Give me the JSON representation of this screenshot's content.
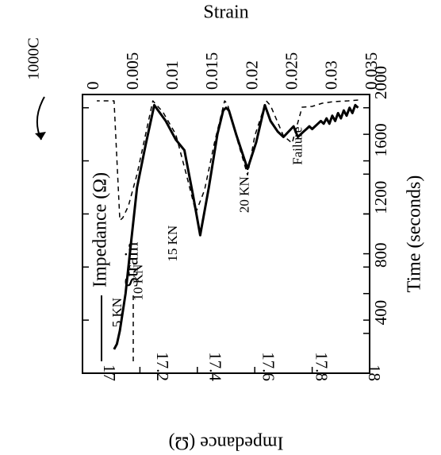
{
  "chart_data": {
    "type": "line",
    "title": "",
    "xlabel": "Time (seconds)",
    "ylabel": "Impedance (Ω)",
    "secondary_label": "Strain",
    "xlim": [
      0,
      2000
    ],
    "ylim": [
      16.95,
      18
    ],
    "secondary_lim": [
      0,
      0.035
    ],
    "x_ticks": [
      "400",
      "800",
      "1200",
      "1600",
      "2000"
    ],
    "y_ticks": [
      "17",
      "17.2",
      "17.4",
      "17.6",
      "17.8",
      "18"
    ],
    "secondary_ticks": [
      "0",
      "0.005",
      "0.01",
      "0.015",
      "0.02",
      "0.025",
      "0.03",
      "0.035"
    ],
    "series": [
      {
        "name": "Impedance (Ω)",
        "style": "solid",
        "color": "#000000",
        "axis": "primary",
        "points": [
          [
            80,
            17.0
          ],
          [
            100,
            16.99
          ],
          [
            120,
            17.02
          ],
          [
            140,
            17.0
          ],
          [
            160,
            17.03
          ],
          [
            180,
            17.01
          ],
          [
            200,
            17.04
          ],
          [
            220,
            17.02
          ],
          [
            240,
            17.05
          ],
          [
            260,
            17.03
          ],
          [
            280,
            17.06
          ],
          [
            300,
            17.04
          ],
          [
            320,
            17.06
          ],
          [
            340,
            17.05
          ],
          [
            360,
            17.06
          ],
          [
            380,
            17.07
          ],
          [
            400,
            17.08
          ],
          [
            420,
            17.07
          ],
          [
            440,
            17.08
          ],
          [
            460,
            17.09
          ],
          [
            480,
            17.1
          ],
          [
            500,
            17.11
          ],
          [
            530,
            17.07
          ],
          [
            600,
            17.11
          ],
          [
            640,
            17.09
          ],
          [
            690,
            17.05
          ],
          [
            730,
            16.99
          ],
          [
            790,
            17.13
          ],
          [
            850,
            17.23
          ],
          [
            930,
            17.1
          ],
          [
            980,
            17.01
          ],
          [
            1000,
            17.0
          ],
          [
            1020,
            17.01
          ],
          [
            1060,
            17.1
          ],
          [
            1120,
            17.3
          ],
          [
            1180,
            17.48
          ],
          [
            1230,
            17.33
          ],
          [
            1290,
            17.16
          ],
          [
            1350,
            17.12
          ],
          [
            1420,
            17.05
          ],
          [
            1500,
            16.99
          ],
          [
            1560,
            17.14
          ],
          [
            1620,
            17.3
          ],
          [
            1660,
            17.5
          ],
          [
            1700,
            17.7
          ],
          [
            1740,
            17.84
          ],
          [
            1760,
            17.89
          ],
          [
            1780,
            17.91
          ]
        ]
      },
      {
        "name": "Strain",
        "style": "dashed",
        "color": "#000000",
        "axis": "secondary",
        "points": [
          [
            80,
            0.0007
          ],
          [
            150,
            0.0008
          ],
          [
            250,
            0.0009
          ],
          [
            330,
            0.0011
          ],
          [
            400,
            0.0015
          ],
          [
            470,
            0.0016
          ],
          [
            540,
            0.0061
          ],
          [
            600,
            0.0052
          ],
          [
            690,
            0.0014
          ],
          [
            720,
            0.0008
          ],
          [
            800,
            0.0052
          ],
          [
            850,
            0.0101
          ],
          [
            930,
            0.0052
          ],
          [
            990,
            0.0012
          ],
          [
            1010,
            0.0008
          ],
          [
            1080,
            0.006
          ],
          [
            1150,
            0.012
          ],
          [
            1210,
            0.0148
          ],
          [
            1280,
            0.0098
          ],
          [
            1350,
            0.005
          ],
          [
            1440,
            0.0022
          ],
          [
            1510,
            0.0008
          ],
          [
            1560,
            0.005
          ],
          [
            1620,
            0.01
          ],
          [
            1680,
            0.014
          ],
          [
            1720,
            0.0155
          ],
          [
            1740,
            0.0158
          ],
          [
            1780,
            0.0008
          ],
          [
            1860,
            0.0008
          ],
          [
            1900,
            0.0008
          ]
        ]
      }
    ],
    "annotations": [
      {
        "text": "5 KN",
        "x": 400,
        "y": 17.04
      },
      {
        "text": "10 KN",
        "x": 610,
        "y": 17.12
      },
      {
        "text": "15 KN",
        "x": 880,
        "y": 17.25
      },
      {
        "text": "20 KN",
        "x": 1220,
        "y": 17.52
      },
      {
        "text": "Failure",
        "x": 1560,
        "y": 17.72
      }
    ],
    "legend_position": "left",
    "grid": false,
    "orientation_note": "Figure rendered rotated 180 degrees",
    "corner_label": "1000C"
  }
}
